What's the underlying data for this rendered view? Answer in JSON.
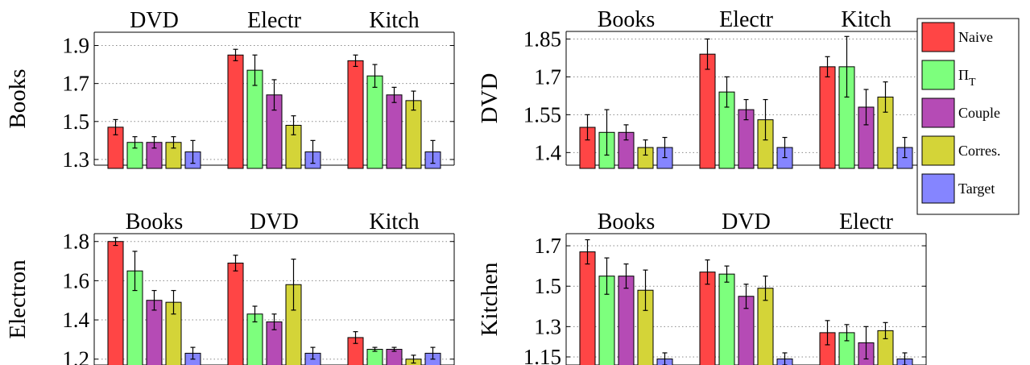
{
  "colors": {
    "Naive": "#ff4545",
    "Pi_T": "#7dff7d",
    "Couple": "#b54bb5",
    "Corres.": "#d4d438",
    "Target": "#8585ff"
  },
  "legend": {
    "items": [
      {
        "key": "Naive",
        "label": "Naive",
        "sub": ""
      },
      {
        "key": "Pi_T",
        "label": "Π",
        "sub": "T"
      },
      {
        "key": "Couple",
        "label": "Couple",
        "sub": ""
      },
      {
        "key": "Corres.",
        "label": "Corres.",
        "sub": ""
      },
      {
        "key": "Target",
        "label": "Target",
        "sub": ""
      }
    ]
  },
  "chart_data": [
    {
      "type": "bar",
      "ylabel": "Books",
      "categories": [
        "DVD",
        "Electr",
        "Kitch"
      ],
      "ylim": [
        1.27,
        1.97
      ],
      "yticks": [
        1.3,
        1.5,
        1.7,
        1.9
      ],
      "ytick_labels": [
        "1.3",
        "1.5",
        "1.7",
        "1.9"
      ],
      "series": [
        {
          "key": "Naive",
          "values": [
            1.47,
            1.85,
            1.82
          ],
          "err": [
            0.04,
            0.03,
            0.03
          ]
        },
        {
          "key": "Pi_T",
          "values": [
            1.39,
            1.77,
            1.74
          ],
          "err": [
            0.03,
            0.08,
            0.06
          ]
        },
        {
          "key": "Couple",
          "values": [
            1.39,
            1.64,
            1.64
          ],
          "err": [
            0.03,
            0.08,
            0.04
          ]
        },
        {
          "key": "Corres.",
          "values": [
            1.39,
            1.48,
            1.61
          ],
          "err": [
            0.03,
            0.05,
            0.05
          ]
        },
        {
          "key": "Target",
          "values": [
            1.34,
            1.34,
            1.34
          ],
          "err": [
            0.06,
            0.06,
            0.06
          ]
        }
      ]
    },
    {
      "type": "bar",
      "ylabel": "DVD",
      "categories": [
        "Books",
        "Electr",
        "Kitch"
      ],
      "ylim": [
        1.35,
        1.88
      ],
      "yticks": [
        1.4,
        1.55,
        1.7,
        1.85
      ],
      "ytick_labels": [
        "1.4",
        "1.55",
        "1.7",
        "1.85"
      ],
      "series": [
        {
          "key": "Naive",
          "values": [
            1.5,
            1.79,
            1.74
          ],
          "err": [
            0.05,
            0.06,
            0.04
          ]
        },
        {
          "key": "Pi_T",
          "values": [
            1.48,
            1.64,
            1.74
          ],
          "err": [
            0.09,
            0.06,
            0.12
          ]
        },
        {
          "key": "Couple",
          "values": [
            1.48,
            1.57,
            1.58
          ],
          "err": [
            0.03,
            0.04,
            0.07
          ]
        },
        {
          "key": "Corres.",
          "values": [
            1.42,
            1.53,
            1.62
          ],
          "err": [
            0.03,
            0.08,
            0.06
          ]
        },
        {
          "key": "Target",
          "values": [
            1.42,
            1.42,
            1.42
          ],
          "err": [
            0.04,
            0.04,
            0.04
          ]
        }
      ]
    },
    {
      "type": "bar",
      "ylabel": "Electron",
      "categories": [
        "Books",
        "DVD",
        "Kitch"
      ],
      "ylim": [
        1.17,
        1.84
      ],
      "yticks": [
        1.2,
        1.4,
        1.6,
        1.8
      ],
      "ytick_labels": [
        "1.2",
        "1.4",
        "1.6",
        "1.8"
      ],
      "series": [
        {
          "key": "Naive",
          "values": [
            1.8,
            1.69,
            1.31
          ],
          "err": [
            0.02,
            0.04,
            0.03
          ]
        },
        {
          "key": "Pi_T",
          "values": [
            1.65,
            1.43,
            1.25
          ],
          "err": [
            0.1,
            0.04,
            0.01
          ]
        },
        {
          "key": "Couple",
          "values": [
            1.5,
            1.39,
            1.25
          ],
          "err": [
            0.05,
            0.04,
            0.01
          ]
        },
        {
          "key": "Corres.",
          "values": [
            1.49,
            1.58,
            1.2
          ],
          "err": [
            0.06,
            0.13,
            0.02
          ]
        },
        {
          "key": "Target",
          "values": [
            1.23,
            1.23,
            1.23
          ],
          "err": [
            0.03,
            0.03,
            0.03
          ]
        }
      ]
    },
    {
      "type": "bar",
      "ylabel": "Kitchen",
      "categories": [
        "Books",
        "DVD",
        "Electr"
      ],
      "ylim": [
        1.11,
        1.76
      ],
      "yticks": [
        1.15,
        1.3,
        1.5,
        1.7
      ],
      "ytick_labels": [
        "1.15",
        "1.3",
        "1.5",
        "1.7"
      ],
      "series": [
        {
          "key": "Naive",
          "values": [
            1.67,
            1.57,
            1.27
          ],
          "err": [
            0.06,
            0.06,
            0.06
          ]
        },
        {
          "key": "Pi_T",
          "values": [
            1.55,
            1.56,
            1.27
          ],
          "err": [
            0.09,
            0.04,
            0.04
          ]
        },
        {
          "key": "Couple",
          "values": [
            1.55,
            1.45,
            1.22
          ],
          "err": [
            0.06,
            0.06,
            0.08
          ]
        },
        {
          "key": "Corres.",
          "values": [
            1.48,
            1.49,
            1.28
          ],
          "err": [
            0.1,
            0.06,
            0.04
          ]
        },
        {
          "key": "Target",
          "values": [
            1.14,
            1.14,
            1.14
          ],
          "err": [
            0.03,
            0.03,
            0.03
          ]
        }
      ]
    }
  ]
}
